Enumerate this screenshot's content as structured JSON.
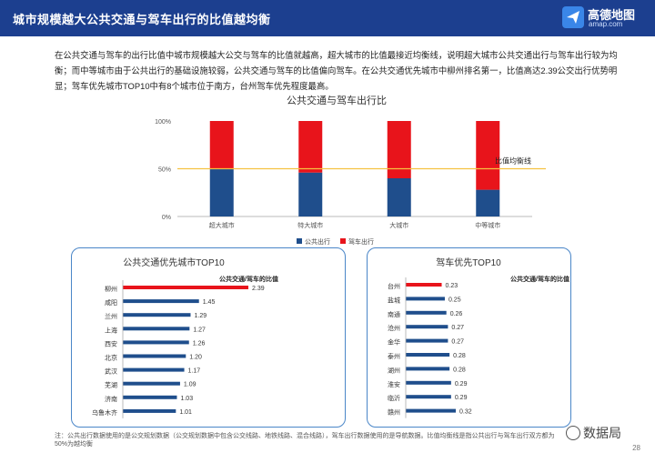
{
  "header": {
    "title": "城市规模越大公共交通与驾车出行的比值越均衡",
    "logo_name": "高德地图",
    "logo_url": "amap.com"
  },
  "intro": "在公共交通与驾车的出行比值中城市规模越大公交与驾车的比值就越高，超大城市的比值最接近均衡线，说明超大城市公共交通出行与驾车出行较为均衡；而中等城市由于公共出行的基础设施较弱，公共交通与驾车的比值偏向驾车。在公共交通优先城市中柳州排名第一，比值高达2.39公交出行优势明显；驾车优先城市TOP10中有8个城市位于南方，台州驾车优先程度最高。",
  "chart_data": [
    {
      "type": "bar",
      "stacked": true,
      "title": "公共交通与驾车出行比",
      "categories": [
        "超大城市",
        "特大城市",
        "大城市",
        "中等城市"
      ],
      "series": [
        {
          "name": "公共出行",
          "values": [
            50,
            46,
            40,
            28
          ],
          "color": "#1f4e8c"
        },
        {
          "name": "驾车出行",
          "values": [
            50,
            54,
            60,
            72
          ],
          "color": "#e8141b"
        }
      ],
      "yticks": [
        "0%",
        "50%",
        "100%"
      ],
      "ylim": [
        0,
        100
      ],
      "reference_line": {
        "label": "比值均衡线",
        "value": 50,
        "color": "#f5c242"
      },
      "legend": "bottom",
      "grid": false
    },
    {
      "type": "bar",
      "orientation": "horizontal",
      "title": "公共交通优先城市TOP10",
      "value_label": "公共交通/驾车的比值",
      "categories": [
        "柳州",
        "咸阳",
        "兰州",
        "上海",
        "西安",
        "北京",
        "武汉",
        "芜湖",
        "济南",
        "乌鲁木齐"
      ],
      "values": [
        2.39,
        1.45,
        1.29,
        1.27,
        1.26,
        1.2,
        1.17,
        1.09,
        1.03,
        1.01
      ],
      "value_labels": [
        "2.39",
        "1.45",
        "1.29",
        "1.27",
        "1.26",
        "1.20",
        "1.17",
        "1.09",
        "1.03",
        "1.01"
      ],
      "highlight_color": "#e8141b",
      "color": "#1f4e8c",
      "xlim": [
        0,
        2.39
      ]
    },
    {
      "type": "bar",
      "orientation": "horizontal",
      "title": "驾车优先TOP10",
      "value_label": "公共交通/驾车的比值",
      "categories": [
        "台州",
        "盐城",
        "南通",
        "沧州",
        "金华",
        "泰州",
        "湖州",
        "淮安",
        "临沂",
        "赣州"
      ],
      "values": [
        0.23,
        0.25,
        0.26,
        0.27,
        0.27,
        0.28,
        0.28,
        0.29,
        0.29,
        0.32
      ],
      "value_labels": [
        "0.23",
        "0.25",
        "0.26",
        "0.27",
        "0.27",
        "0.28",
        "0.28",
        "0.29",
        "0.29",
        "0.32"
      ],
      "highlight_color": "#e8141b",
      "color": "#1f4e8c",
      "xlim": [
        0,
        0.32
      ]
    }
  ],
  "footnote": "注：公共出行数据使用的是公交规划数据（公交规划数据中包含公交线路、地铁线路、混合线路），驾车出行数据使用的是导航数据。比值均衡线是指公共出行与驾车出行双方都为50%为越均衡",
  "watermark": "数据局",
  "page_number": "28"
}
